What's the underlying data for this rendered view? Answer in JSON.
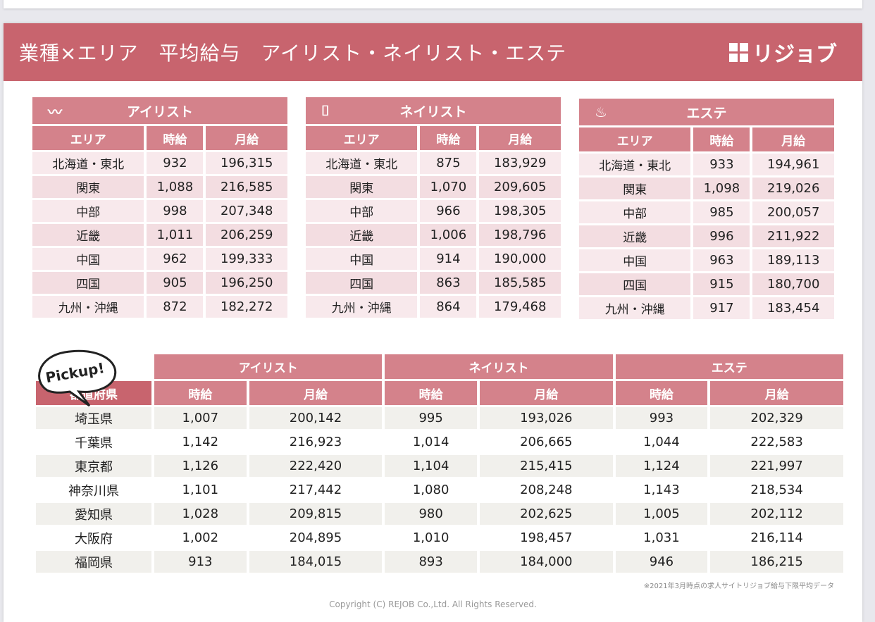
{
  "header": {
    "title": "業種×エリア　平均給与　アイリスト・ネイリスト・エステ",
    "logo": "リジョブ"
  },
  "area_columns": [
    "エリア",
    "時給",
    "月給"
  ],
  "area_tables": [
    {
      "title": "アイリスト",
      "icon": "eyelash-icon",
      "rows": [
        [
          "北海道・東北",
          "932",
          "196,315"
        ],
        [
          "関東",
          "1,088",
          "216,585"
        ],
        [
          "中部",
          "998",
          "207,348"
        ],
        [
          "近畿",
          "1,011",
          "206,259"
        ],
        [
          "中国",
          "962",
          "199,333"
        ],
        [
          "四国",
          "905",
          "196,250"
        ],
        [
          "九州・沖縄",
          "872",
          "182,272"
        ]
      ]
    },
    {
      "title": "ネイリスト",
      "icon": "nail-icon",
      "rows": [
        [
          "北海道・東北",
          "875",
          "183,929"
        ],
        [
          "関東",
          "1,070",
          "209,605"
        ],
        [
          "中部",
          "966",
          "198,305"
        ],
        [
          "近畿",
          "1,006",
          "198,796"
        ],
        [
          "中国",
          "914",
          "190,000"
        ],
        [
          "四国",
          "863",
          "185,585"
        ],
        [
          "九州・沖縄",
          "864",
          "179,468"
        ]
      ]
    },
    {
      "title": "エステ",
      "icon": "esthetic-massage-icon",
      "rows": [
        [
          "北海道・東北",
          "933",
          "194,961"
        ],
        [
          "関東",
          "1,098",
          "219,026"
        ],
        [
          "中部",
          "985",
          "200,057"
        ],
        [
          "近畿",
          "996",
          "211,922"
        ],
        [
          "中国",
          "963",
          "189,113"
        ],
        [
          "四国",
          "915",
          "180,700"
        ],
        [
          "九州・沖縄",
          "917",
          "183,454"
        ]
      ]
    }
  ],
  "pickup": {
    "badge": "Pickup!",
    "pref_header": "都道府県",
    "groups": [
      "アイリスト",
      "ネイリスト",
      "エステ"
    ],
    "sub": [
      "時給",
      "月給"
    ],
    "rows": [
      [
        "埼玉県",
        "1,007",
        "200,142",
        "995",
        "193,026",
        "993",
        "202,329"
      ],
      [
        "千葉県",
        "1,142",
        "216,923",
        "1,014",
        "206,665",
        "1,044",
        "222,583"
      ],
      [
        "東京都",
        "1,126",
        "222,420",
        "1,104",
        "215,415",
        "1,124",
        "221,997"
      ],
      [
        "神奈川県",
        "1,101",
        "217,442",
        "1,080",
        "208,248",
        "1,143",
        "218,534"
      ],
      [
        "愛知県",
        "1,028",
        "209,815",
        "980",
        "202,625",
        "1,005",
        "202,112"
      ],
      [
        "大阪府",
        "1,002",
        "204,895",
        "1,010",
        "198,457",
        "1,031",
        "216,114"
      ],
      [
        "福岡県",
        "913",
        "184,015",
        "893",
        "184,000",
        "946",
        "186,215"
      ]
    ]
  },
  "footnote": "※2021年3月時点の求人サイトリジョブ給与下限平均データ",
  "copyright": "Copyright (C) REJOB Co.,Ltd. All Rights Reserved.",
  "colors": {
    "header": "#c8646e",
    "table_header": "#d4828b"
  }
}
